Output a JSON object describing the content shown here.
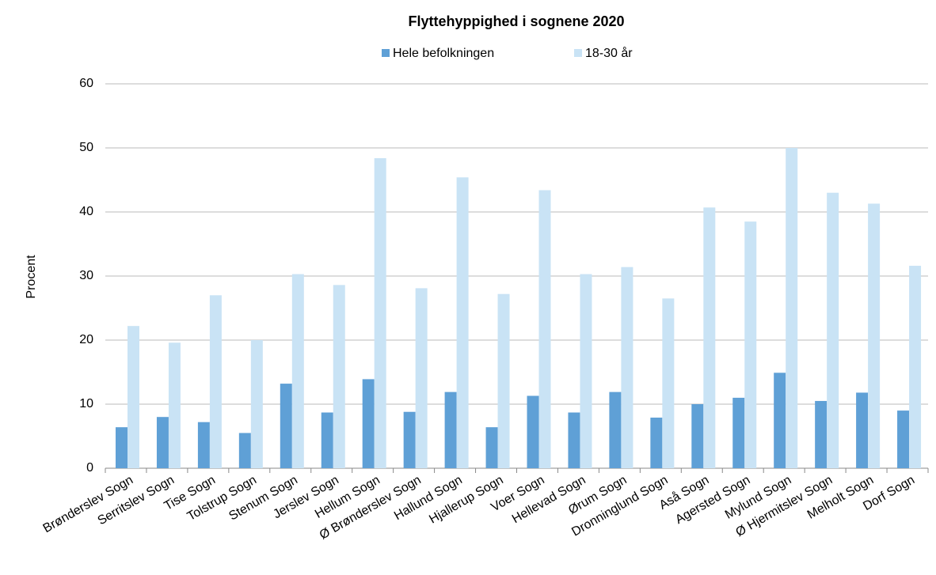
{
  "chart_data": {
    "type": "bar",
    "title": "Flyttehyppighed i sognene 2020",
    "y_label": "Procent",
    "categories": [
      "Brønderslev Sogn",
      "Serritslev Sogn",
      "Tise Sogn",
      "Tolstrup Sogn",
      "Stenum Sogn",
      "Jerslev Sogn",
      "Hellum Sogn",
      "Ø Brønderslev Sogn",
      "Hallund Sogn",
      "Hjallerup Sogn",
      "Voer Sogn",
      "Hellevad Sogn",
      "Ørum Sogn",
      "Dronninglund Sogn",
      "Aså Sogn",
      "Agersted Sogn",
      "Mylund Sogn",
      "Ø Hjermitslev Sogn",
      "Melholt Sogn",
      "Dorf Sogn"
    ],
    "series": [
      {
        "name": "Hele befolkningen",
        "color": "#5fa0d6",
        "values": [
          6.4,
          8.0,
          7.2,
          5.5,
          13.2,
          8.7,
          13.9,
          8.8,
          11.9,
          6.4,
          11.3,
          8.7,
          11.9,
          7.9,
          10.0,
          11.0,
          14.9,
          10.5,
          11.8,
          9.0
        ]
      },
      {
        "name": "18-30 år",
        "color": "#c9e3f5",
        "values": [
          22.2,
          19.6,
          27.0,
          20.0,
          30.3,
          28.6,
          48.4,
          28.1,
          45.4,
          27.2,
          43.4,
          30.3,
          31.4,
          26.5,
          40.7,
          38.5,
          50.0,
          43.0,
          41.3,
          31.6
        ]
      }
    ],
    "ylim": [
      0,
      60
    ],
    "yticks": [
      0,
      10,
      20,
      30,
      40,
      50,
      60
    ],
    "grid": true,
    "legend": "top"
  }
}
